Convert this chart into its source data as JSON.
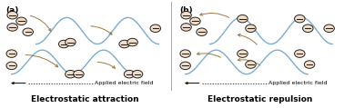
{
  "bg_color": "#F2C49E",
  "outer_bg": "#FFFFFF",
  "panel_a_title": "Electrostatic attraction",
  "panel_b_title": "Electrostatic repulsion",
  "panel_a_label": "(a)",
  "panel_b_label": "(b)",
  "arrow_label": "Applied electric field",
  "wave_color_blue": "#7AADD4",
  "wave_color_brown": "#A07840",
  "circle_fill": "#F0DEC8",
  "circle_edge": "#222222",
  "title_fontsize": 6.5,
  "label_fontsize": 6.5,
  "arrow_fontsize": 4.5,
  "divider_color": "#CCCCCC"
}
